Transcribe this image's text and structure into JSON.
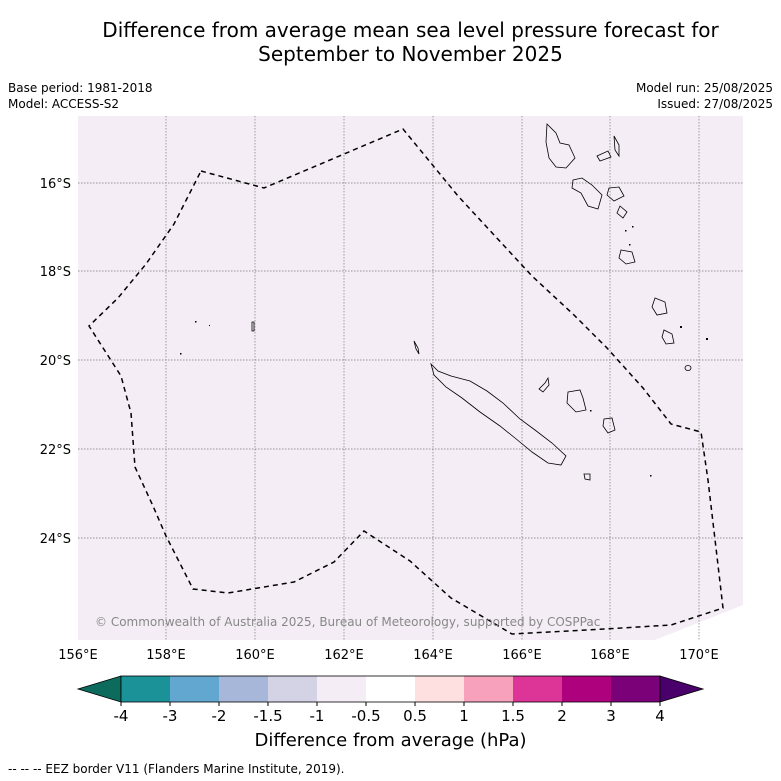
{
  "title_line1": "Difference from average mean sea level pressure forecast for",
  "title_line2": "September to November 2025",
  "meta": {
    "base_period": "Base period: 1981-2018",
    "model": "Model: ACCESS-S2",
    "model_run": "Model run: 25/08/2025",
    "issued": "Issued: 27/08/2025"
  },
  "map": {
    "background": "#f4edf5",
    "lat_labels": [
      "16°S",
      "18°S",
      "20°S",
      "22°S",
      "24°S"
    ],
    "lon_labels": [
      "156°E",
      "158°E",
      "160°E",
      "162°E",
      "164°E",
      "166°E",
      "168°E",
      "170°E"
    ],
    "copyright": "© Commonwealth of Australia 2025, Bureau of Meteorology, supported by COSPPac"
  },
  "colorbar": {
    "title": "Difference from average (hPa)",
    "ticks": [
      "-4",
      "-3",
      "-2",
      "-1.5",
      "-1",
      "-0.5",
      "0.5",
      "1",
      "1.5",
      "2",
      "3",
      "4"
    ],
    "colors": [
      "#0d6b5e",
      "#1b9298",
      "#62a7cf",
      "#a7b7d9",
      "#d4d3e5",
      "#f4edf5",
      "#ffffff",
      "#fde0df",
      "#f7a1bc",
      "#dd3497",
      "#ae017e",
      "#7a0177",
      "#49006a"
    ]
  },
  "footer": "--  --  -- EEZ border V11 (Flanders Marine Institute, 2019)."
}
